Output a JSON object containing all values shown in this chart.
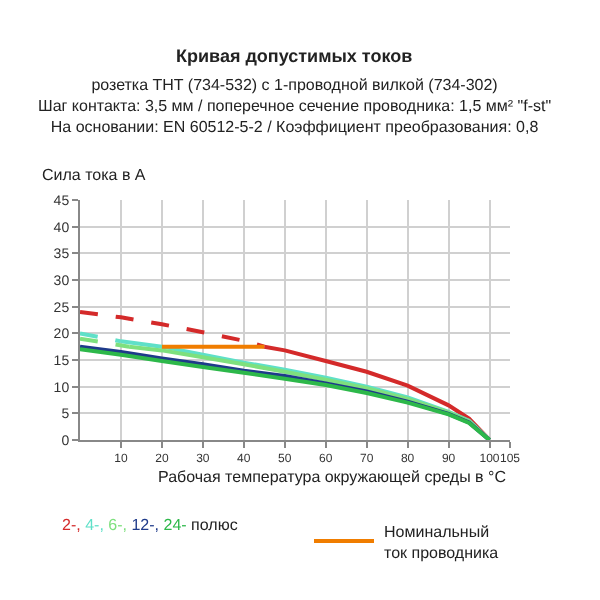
{
  "chart_data": {
    "type": "line",
    "title": "Кривая допустимых токов",
    "subtitle": "розетка THT (734-532) с 1-проводной вилкой (734-302)\nШаг контакта: 3,5 мм / поперечное сечение проводника: 1,5 мм² \"f-st\"\nНа основании: EN 60512-5-2 / Коэффициент преобразования: 0,8",
    "xlabel": "Рабочая температура окружающей среды в °C",
    "ylabel": "Сила тока в А",
    "legend_title": "полюс",
    "xlim": [
      0,
      105
    ],
    "xticks": [
      10,
      20,
      30,
      40,
      50,
      60,
      70,
      80,
      90,
      100,
      105
    ],
    "ylim": [
      0,
      45
    ],
    "yticks": [
      0,
      5,
      10,
      15,
      20,
      25,
      30,
      35,
      40,
      45
    ],
    "grid": true,
    "legend": "bottom",
    "series": [
      {
        "name": "2-,",
        "color": "#d42a2a",
        "line_style": "dashed",
        "x": [
          0,
          10,
          20,
          30,
          40,
          45
        ],
        "values": [
          24,
          23,
          21.7,
          20.2,
          18.6,
          17.5
        ]
      },
      {
        "color": "#d42a2a",
        "line_style": "solid",
        "x": [
          45,
          50,
          60,
          70,
          80,
          90,
          95,
          100
        ],
        "values": [
          17.5,
          16.8,
          14.8,
          12.8,
          10.2,
          6.5,
          4,
          0
        ]
      },
      {
        "name": "4-,",
        "color": "#5fe0c8",
        "line_style": "dashed",
        "x": [
          0,
          10
        ],
        "values": [
          20,
          18.5
        ]
      },
      {
        "color": "#5fe0c8",
        "line_style": "solid",
        "x": [
          10,
          20,
          30,
          40,
          50,
          60,
          70,
          80,
          90,
          95,
          100
        ],
        "values": [
          18.5,
          17.5,
          16,
          14.5,
          13.2,
          11.7,
          10,
          8,
          5.3,
          3.6,
          0
        ]
      },
      {
        "name": "6-,",
        "color": "#7ee07e",
        "line_style": "dashed",
        "x": [
          0,
          12
        ],
        "values": [
          19,
          17.5
        ]
      },
      {
        "color": "#7ee07e",
        "line_style": "solid",
        "x": [
          12,
          20,
          30,
          40,
          50,
          60,
          70,
          80,
          90,
          95,
          100
        ],
        "values": [
          17.5,
          16.8,
          15.5,
          14.2,
          12.8,
          11.3,
          9.7,
          7.7,
          5.2,
          3.5,
          0
        ]
      },
      {
        "name": "12-,",
        "color": "#1e3a8a",
        "line_style": "solid",
        "x": [
          0,
          10,
          20,
          30,
          40,
          50,
          60,
          70,
          80,
          90,
          95,
          100
        ],
        "values": [
          17.5,
          16.5,
          15.3,
          14.2,
          13,
          12,
          10.6,
          9.1,
          7.2,
          4.9,
          3.3,
          0
        ]
      },
      {
        "name": "24-",
        "color": "#2db84a",
        "line_style": "solid",
        "x": [
          0,
          10,
          20,
          30,
          40,
          50,
          60,
          70,
          80,
          90,
          95,
          100
        ],
        "values": [
          17,
          16,
          14.8,
          13.7,
          12.6,
          11.5,
          10.3,
          8.8,
          7,
          4.8,
          3.2,
          0
        ]
      },
      {
        "name": "Номинальный\nток проводника",
        "color": "#f07d00",
        "line_style": "solid",
        "x": [
          20,
          45
        ],
        "values": [
          17.5,
          17.5
        ]
      }
    ]
  }
}
